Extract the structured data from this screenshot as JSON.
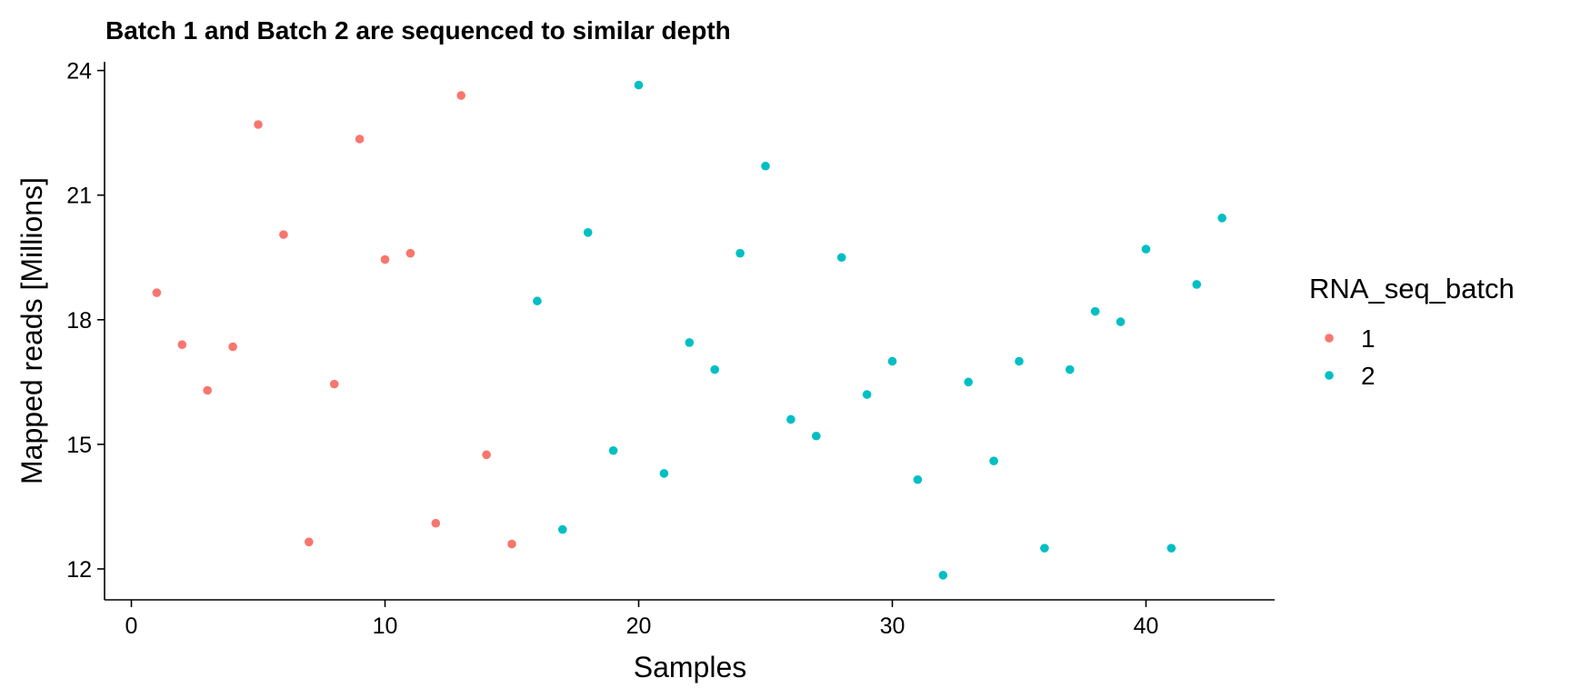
{
  "chart_data": {
    "type": "scatter",
    "title": "Batch 1 and Batch 2 are sequenced to similar depth",
    "xlabel": "Samples",
    "ylabel": "Mapped reads [Millions]",
    "xlim": [
      -1,
      45
    ],
    "ylim": [
      11.3,
      24.2
    ],
    "xticks": [
      0,
      10,
      20,
      30,
      40
    ],
    "yticks": [
      12,
      15,
      18,
      21,
      24
    ],
    "xtick_labels": [
      "0",
      "10",
      "20",
      "30",
      "40"
    ],
    "ytick_labels": [
      "12",
      "15",
      "18",
      "21",
      "24"
    ],
    "grid": false,
    "legend": {
      "title": "RNA_seq_batch",
      "position": "right",
      "entries": [
        {
          "label": "1",
          "color": "#F8766D"
        },
        {
          "label": "2",
          "color": "#00BFC4"
        }
      ]
    },
    "series": [
      {
        "name": "1",
        "color": "#F8766D",
        "x": [
          1,
          2,
          3,
          4,
          5,
          6,
          7,
          8,
          9,
          10,
          11,
          12,
          13,
          14,
          15
        ],
        "y": [
          18.65,
          17.4,
          16.3,
          17.35,
          22.7,
          20.05,
          12.65,
          16.45,
          22.35,
          19.45,
          19.6,
          13.1,
          23.4,
          14.75,
          12.6
        ]
      },
      {
        "name": "2",
        "color": "#00BFC4",
        "x": [
          16,
          17,
          18,
          19,
          20,
          21,
          22,
          23,
          24,
          25,
          26,
          27,
          28,
          29,
          30,
          31,
          32,
          33,
          34,
          35,
          36,
          37,
          38,
          39,
          40,
          41,
          42,
          43
        ],
        "y": [
          18.45,
          12.95,
          20.1,
          14.85,
          23.65,
          14.3,
          17.45,
          16.8,
          19.6,
          21.7,
          15.6,
          15.2,
          19.5,
          16.2,
          17.0,
          14.15,
          11.85,
          16.5,
          14.6,
          17.0,
          12.5,
          16.8,
          18.2,
          17.95,
          19.7,
          12.5,
          18.85,
          20.45
        ]
      }
    ]
  }
}
